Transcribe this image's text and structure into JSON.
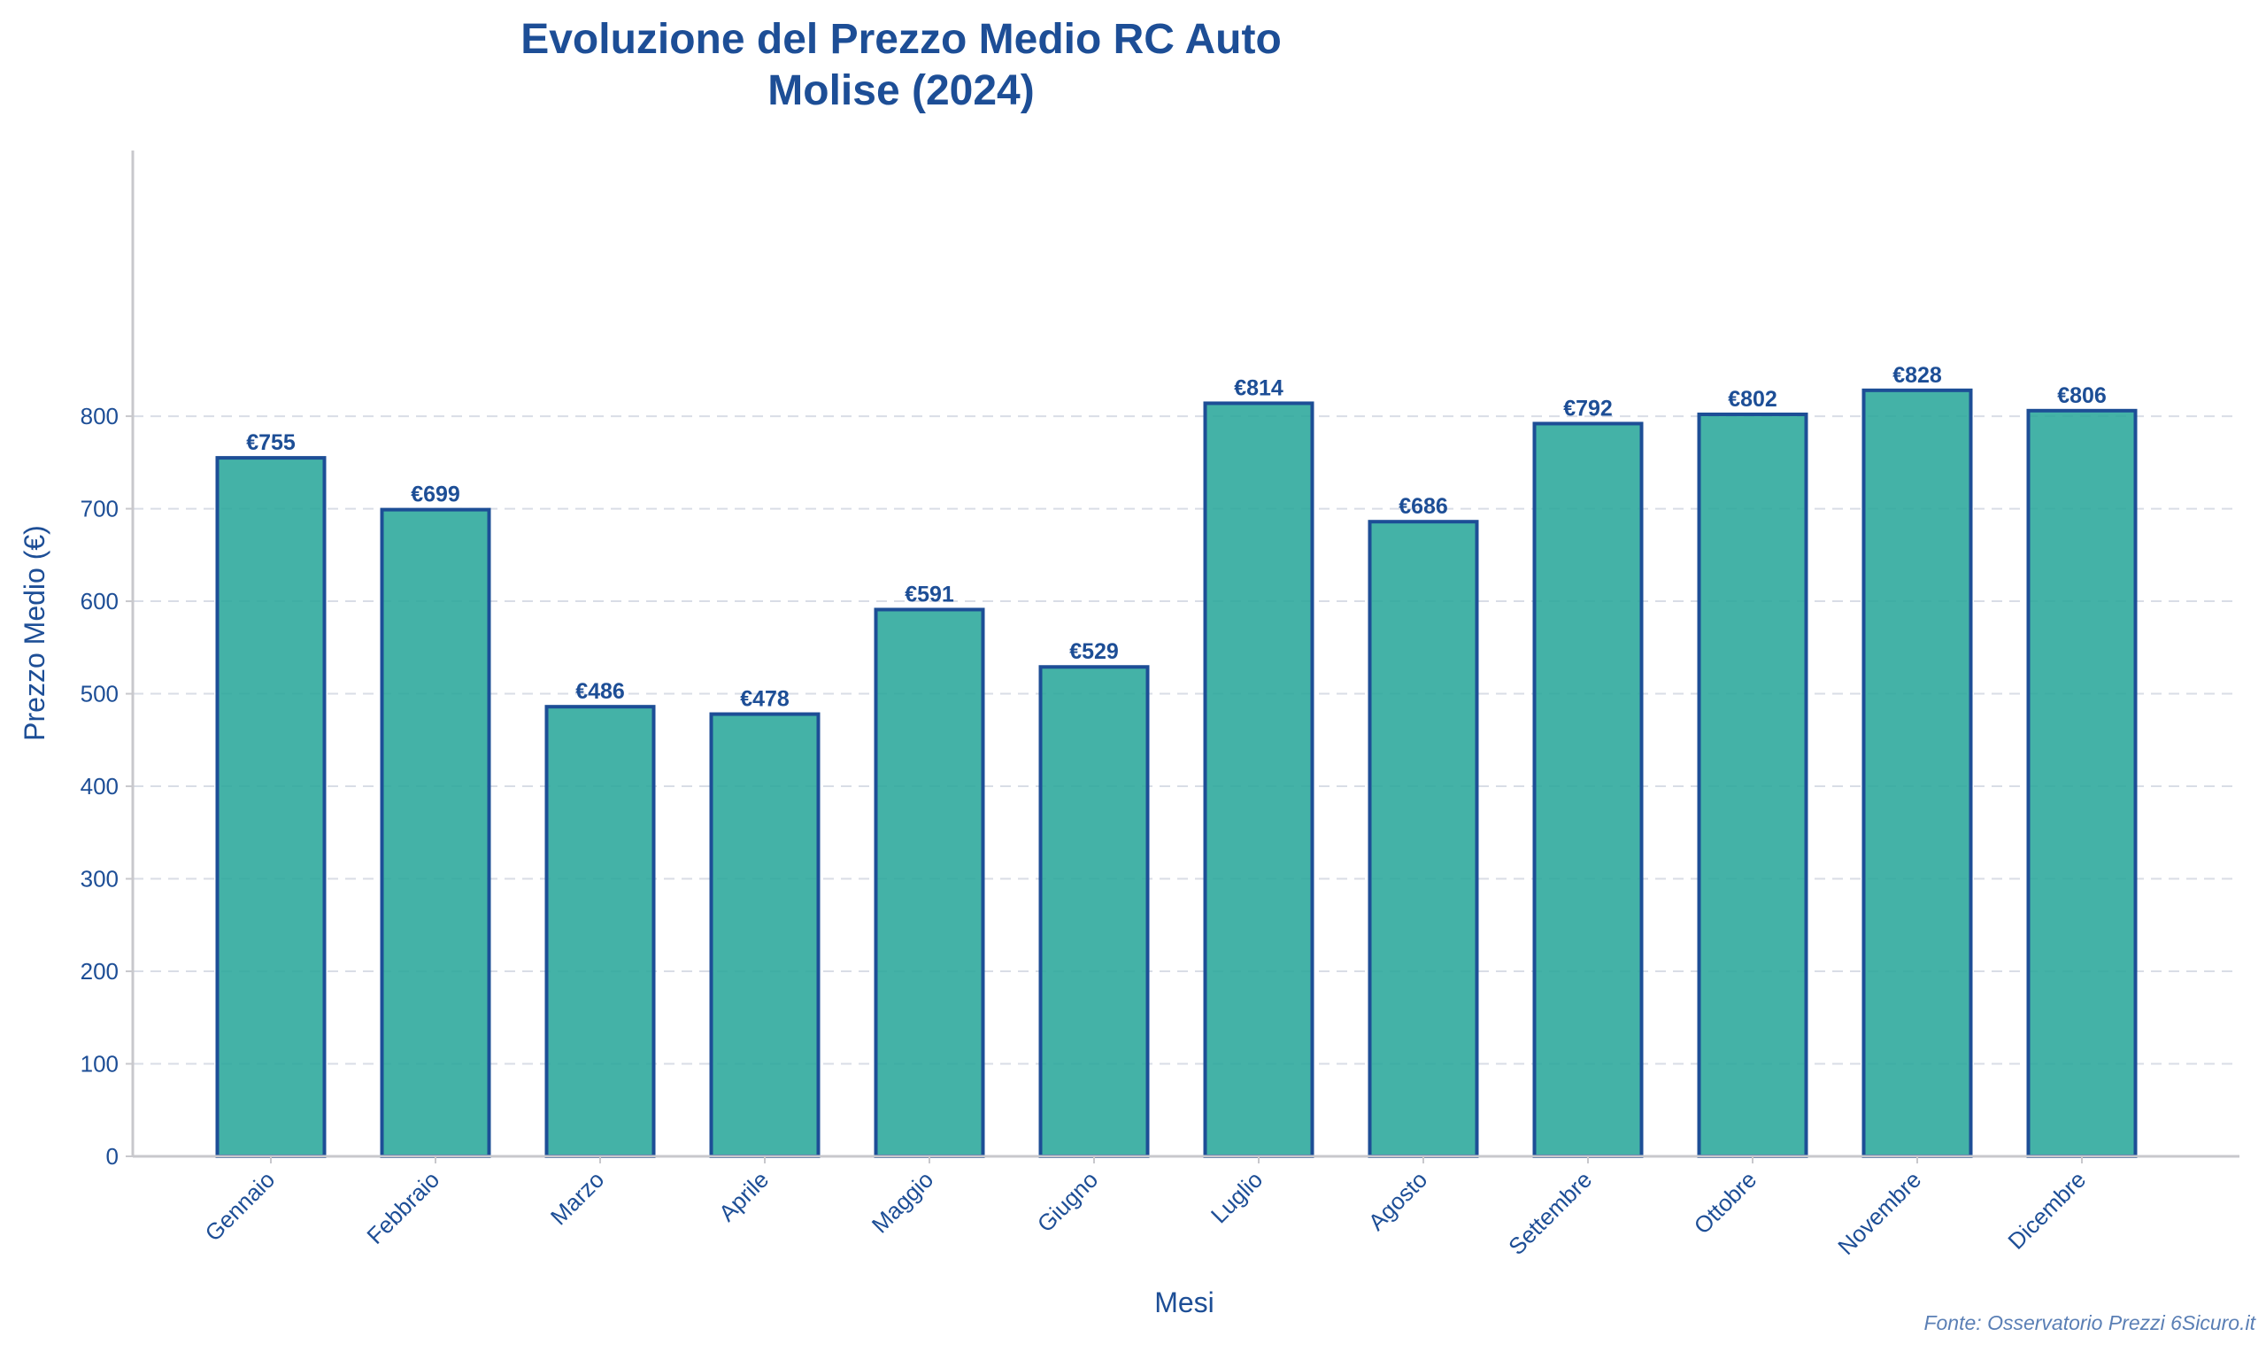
{
  "chart_data": {
    "type": "bar",
    "title": [
      "Evoluzione del Prezzo Medio RC Auto",
      "Molise (2024)"
    ],
    "xlabel": "Mesi",
    "ylabel": "Prezzo Medio (€)",
    "categories": [
      "Gennaio",
      "Febbraio",
      "Marzo",
      "Aprile",
      "Maggio",
      "Giugno",
      "Luglio",
      "Agosto",
      "Settembre",
      "Ottobre",
      "Novembre",
      "Dicembre"
    ],
    "values": [
      755,
      699,
      486,
      478,
      591,
      529,
      814,
      686,
      792,
      802,
      828,
      806
    ],
    "value_labels": [
      "€755",
      "€699",
      "€486",
      "€478",
      "€591",
      "€529",
      "€814",
      "€686",
      "€792",
      "€802",
      "€828",
      "€806"
    ],
    "ylim": [
      0,
      870
    ],
    "yticks": [
      0,
      100,
      200,
      300,
      400,
      500,
      600,
      700,
      800
    ],
    "grid": "horizontal dashed",
    "colors": {
      "bar_fill": "#2aa79b",
      "bar_edge": "#1d4e96",
      "text": "#1d4e96",
      "grid": "#d9dde6",
      "axis": "#c8c8cc"
    },
    "source_note": "Fonte: Osservatorio Prezzi 6Sicuro.it"
  }
}
